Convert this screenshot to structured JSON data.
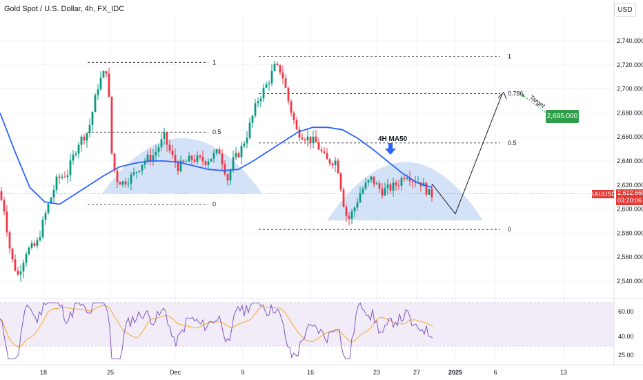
{
  "header": {
    "title": "Gold Spot / U.S. Dollar, 4h, FX_IDC",
    "currency_label": "USD"
  },
  "badges": {
    "ticker": "XAUUSD",
    "last_price": "2,612.660",
    "countdown": "03:20:06",
    "target_price": "2,695.000"
  },
  "annotations": {
    "ma_label": "4H MA50",
    "target_label": "Target"
  },
  "colors": {
    "up_candle": "#089981",
    "down_candle": "#f23645",
    "ma50": "#2962ff",
    "rsi": "#7e57c2",
    "rsi_ma": "#f9a825",
    "target_green": "#2e9e4a",
    "dome_fill": "#c6d8f5"
  },
  "chart_data": [
    {
      "type": "candlestick",
      "title": "Gold Spot / U.S. Dollar, 4h, FX_IDC",
      "x_axis": {
        "tick_labels": [
          "18",
          "25",
          "Dec",
          "9",
          "16",
          "23",
          "27",
          "2025",
          "6",
          "13"
        ]
      },
      "y_axis": {
        "side": "right",
        "ylim": [
          2528,
          2755
        ],
        "tick_labels": [
          "2,540.000",
          "2,560.000",
          "2,580.000",
          "2,600.000",
          "2,620.000",
          "2,640.000",
          "2,660.000",
          "2,680.000",
          "2,700.000",
          "2,720.000",
          "2,740.000"
        ]
      },
      "last_price": 2612.66,
      "overlay_ma50": {
        "name": "4H MA50",
        "values": [
          2680,
          2648,
          2618,
          2606,
          2604,
          2612,
          2620,
          2628,
          2635,
          2638,
          2640,
          2640,
          2639,
          2636,
          2633,
          2632,
          2633,
          2640,
          2648,
          2656,
          2664,
          2668,
          2668,
          2666,
          2659,
          2650,
          2640,
          2630,
          2622,
          2618
        ]
      },
      "fib_levels": [
        {
          "group": 1,
          "labels": [
            "1",
            "0.5",
            "0"
          ],
          "prices": [
            2722,
            2664,
            2604
          ]
        },
        {
          "group": 2,
          "labels": [
            "1",
            "0.786",
            "0.5",
            "0"
          ],
          "prices": [
            2727,
            2696,
            2655,
            2583
          ]
        }
      ],
      "projection_path_prices": [
        2621,
        2596,
        2696
      ],
      "target": {
        "label": "Target",
        "price": 2695.0
      }
    },
    {
      "type": "line",
      "name": "RSI",
      "y_axis": {
        "tick_labels": [
          "25.00",
          "40.00",
          "60.00"
        ],
        "ylim": [
          18,
          68
        ]
      },
      "band": [
        30,
        70
      ]
    }
  ]
}
